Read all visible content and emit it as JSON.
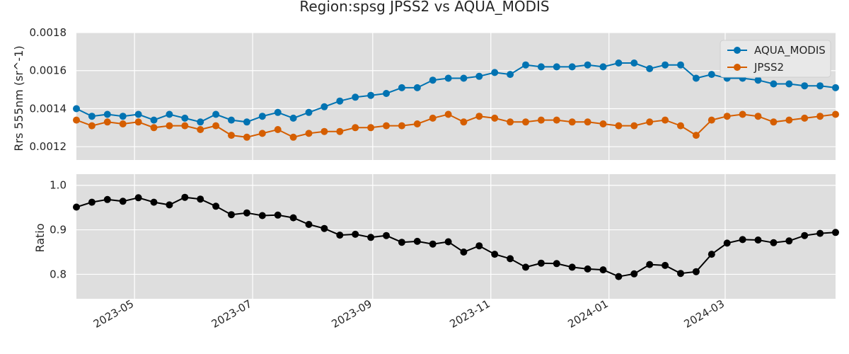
{
  "chart_data": {
    "type": "line",
    "title": "Region:spsg JPSS2 vs AQUA_MODIS",
    "x_dates": [
      "2023-04-01",
      "2023-04-09",
      "2023-04-17",
      "2023-04-25",
      "2023-05-03",
      "2023-05-11",
      "2023-05-19",
      "2023-05-27",
      "2023-06-04",
      "2023-06-12",
      "2023-06-20",
      "2023-06-28",
      "2023-07-06",
      "2023-07-14",
      "2023-07-22",
      "2023-07-30",
      "2023-08-07",
      "2023-08-15",
      "2023-08-23",
      "2023-08-31",
      "2023-09-08",
      "2023-09-16",
      "2023-09-24",
      "2023-10-02",
      "2023-10-10",
      "2023-10-18",
      "2023-10-26",
      "2023-11-03",
      "2023-11-11",
      "2023-11-19",
      "2023-11-27",
      "2023-12-05",
      "2023-12-13",
      "2023-12-21",
      "2023-12-29",
      "2024-01-06",
      "2024-01-14",
      "2024-01-22",
      "2024-01-30",
      "2024-02-07",
      "2024-02-15",
      "2024-02-23",
      "2024-03-02",
      "2024-03-10",
      "2024-03-18",
      "2024-03-26",
      "2024-04-03",
      "2024-04-11",
      "2024-04-19",
      "2024-04-27"
    ],
    "x_ticks": [
      "2023-05",
      "2023-07",
      "2023-09",
      "2023-11",
      "2024-01",
      "2024-03"
    ],
    "xlim": [
      "2023-04-01",
      "2024-04-27"
    ],
    "panels": [
      {
        "ylabel": "Rrs 555nm (sr^-1)",
        "ylim": [
          0.00113,
          0.0018
        ],
        "yticks": [
          "0.0012",
          "0.0014",
          "0.0016",
          "0.0018"
        ],
        "ytick_values": [
          0.0012,
          0.0014,
          0.0016,
          0.0018
        ],
        "legend_position": "upper-right",
        "series": [
          {
            "name": "AQUA_MODIS",
            "color": "#0173b2",
            "values": [
              0.0014,
              0.00136,
              0.00137,
              0.00136,
              0.00137,
              0.00134,
              0.00137,
              0.00135,
              0.00133,
              0.00137,
              0.00134,
              0.00133,
              0.00136,
              0.00138,
              0.00135,
              0.00138,
              0.00141,
              0.00144,
              0.00146,
              0.00147,
              0.00148,
              0.00151,
              0.00151,
              0.00155,
              0.00156,
              0.00156,
              0.00157,
              0.00159,
              0.00158,
              0.00163,
              0.00162,
              0.00162,
              0.00162,
              0.00163,
              0.00162,
              0.00164,
              0.00164,
              0.00161,
              0.00163,
              0.00163,
              0.00156,
              0.00158,
              0.00156,
              0.00156,
              0.00155,
              0.00153,
              0.00153,
              0.00152,
              0.00152,
              0.00151
            ]
          },
          {
            "name": "JPSS2",
            "color": "#d55e00",
            "values": [
              0.00134,
              0.00131,
              0.00133,
              0.00132,
              0.00133,
              0.0013,
              0.00131,
              0.00131,
              0.00129,
              0.00131,
              0.00126,
              0.00125,
              0.00127,
              0.00129,
              0.00125,
              0.00127,
              0.00128,
              0.00128,
              0.0013,
              0.0013,
              0.00131,
              0.00131,
              0.00132,
              0.00135,
              0.00137,
              0.00133,
              0.00136,
              0.00135,
              0.00133,
              0.00133,
              0.00134,
              0.00134,
              0.00133,
              0.00133,
              0.00132,
              0.00131,
              0.00131,
              0.00133,
              0.00134,
              0.00131,
              0.00126,
              0.00134,
              0.00136,
              0.00137,
              0.00136,
              0.00133,
              0.00134,
              0.00135,
              0.00136,
              0.00137
            ]
          }
        ]
      },
      {
        "ylabel": "Ratio",
        "ylim": [
          0.745,
          1.025
        ],
        "yticks": [
          "0.8",
          "0.9",
          "1.0"
        ],
        "ytick_values": [
          0.8,
          0.9,
          1.0
        ],
        "series": [
          {
            "name": "",
            "color": "#000000",
            "values": [
              0.951,
              0.962,
              0.968,
              0.964,
              0.972,
              0.962,
              0.956,
              0.973,
              0.969,
              0.953,
              0.934,
              0.938,
              0.932,
              0.933,
              0.927,
              0.912,
              0.903,
              0.888,
              0.89,
              0.883,
              0.887,
              0.872,
              0.874,
              0.868,
              0.873,
              0.85,
              0.864,
              0.845,
              0.835,
              0.816,
              0.825,
              0.824,
              0.816,
              0.812,
              0.81,
              0.795,
              0.801,
              0.822,
              0.82,
              0.802,
              0.806,
              0.845,
              0.87,
              0.878,
              0.877,
              0.871,
              0.875,
              0.887,
              0.892,
              0.894
            ]
          }
        ]
      }
    ]
  }
}
